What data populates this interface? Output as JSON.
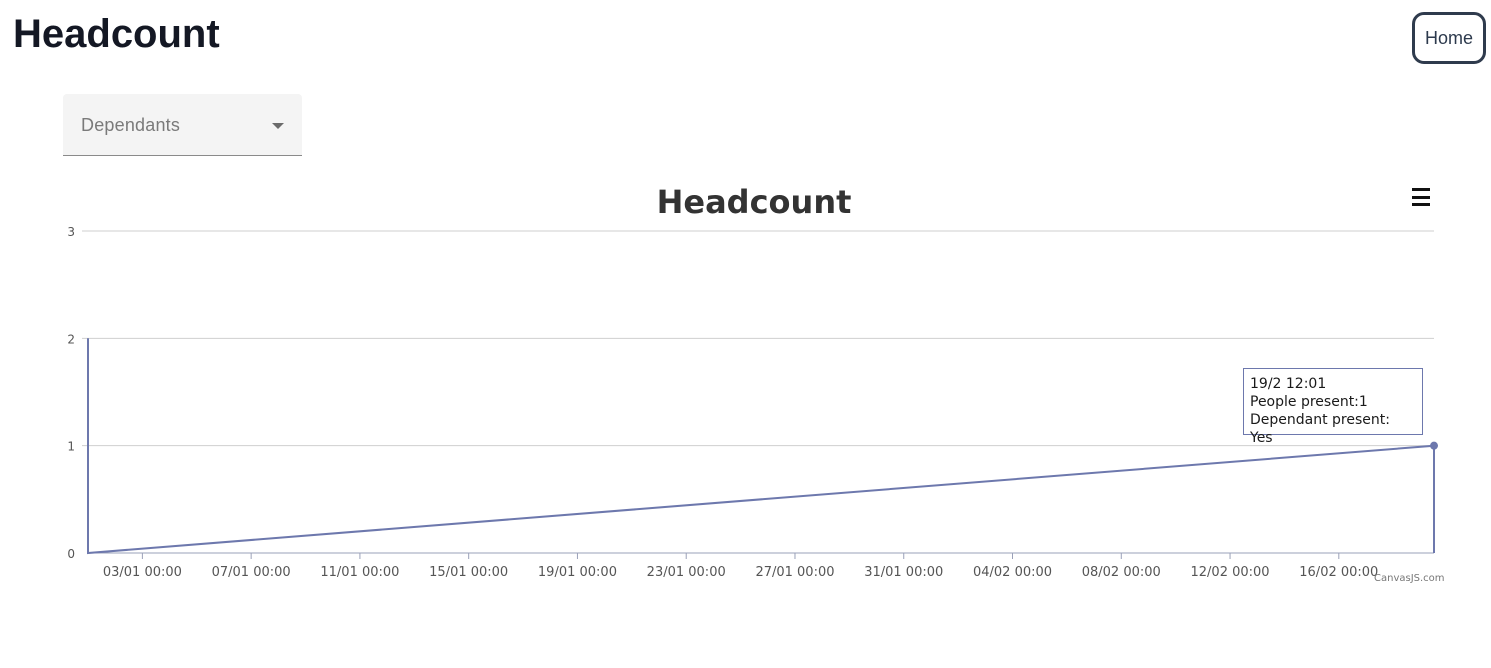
{
  "page": {
    "title": "Headcount"
  },
  "nav": {
    "home_label": "Home"
  },
  "filter": {
    "selected": "Dependants",
    "icon": "chevron-down-icon"
  },
  "chart_menu": {
    "icon": "hamburger-menu-icon"
  },
  "credit": "CanvasJS.com",
  "colors": {
    "series": "#6d78ad",
    "grid": "#cfcfcf",
    "axis": "#9aa0b8",
    "tick_text": "#555555"
  },
  "chart_data": {
    "type": "line",
    "title": "Headcount",
    "xlabel": "",
    "ylabel": "",
    "ylim": [
      0,
      3
    ],
    "yticks": [
      "0",
      "1",
      "2",
      "3"
    ],
    "xticks": [
      "03/01 00:00",
      "07/01 00:00",
      "11/01 00:00",
      "15/01 00:00",
      "19/01 00:00",
      "23/01 00:00",
      "27/01 00:00",
      "31/01 00:00",
      "04/02 00:00",
      "08/02 00:00",
      "12/02 00:00",
      "16/02 00:00"
    ],
    "grid": true,
    "series": [
      {
        "points": [
          {
            "x": "01/01 00:00",
            "y": 2
          },
          {
            "x": "01/01 00:00",
            "y": 0
          },
          {
            "x": "19/02 12:01",
            "y": 1
          },
          {
            "x": "19/02 12:01",
            "y": 0
          }
        ]
      }
    ],
    "tooltip": {
      "line1": "19/2 12:01",
      "line2": "People present:1",
      "line3": "Dependant present: Yes"
    }
  }
}
